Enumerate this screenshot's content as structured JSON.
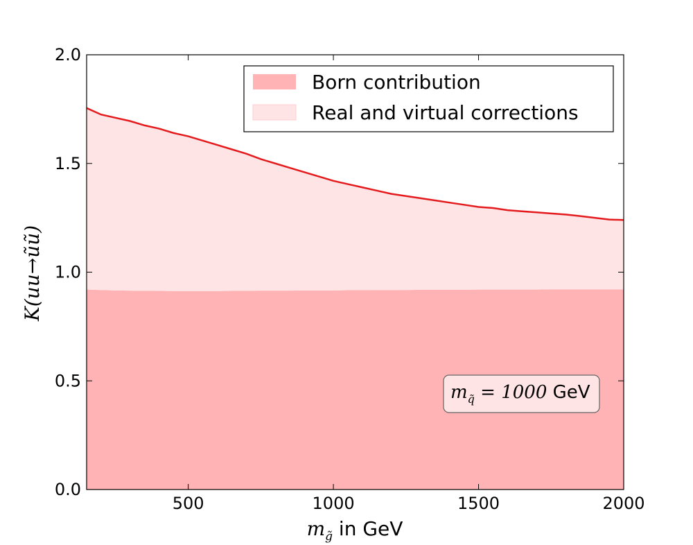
{
  "chart_data": {
    "type": "area",
    "x": [
      150,
      200,
      250,
      300,
      350,
      400,
      450,
      500,
      550,
      600,
      650,
      700,
      750,
      800,
      850,
      900,
      950,
      1000,
      1050,
      1100,
      1150,
      1200,
      1250,
      1300,
      1350,
      1400,
      1450,
      1500,
      1550,
      1600,
      1650,
      1700,
      1750,
      1800,
      1850,
      1900,
      1950,
      2000
    ],
    "series": [
      {
        "name": "Born contribution",
        "color": "#ffb3b5",
        "values": [
          0.92,
          0.918,
          0.916,
          0.915,
          0.914,
          0.914,
          0.913,
          0.913,
          0.913,
          0.913,
          0.914,
          0.914,
          0.915,
          0.915,
          0.915,
          0.916,
          0.916,
          0.916,
          0.917,
          0.917,
          0.918,
          0.918,
          0.918,
          0.919,
          0.919,
          0.919,
          0.919,
          0.92,
          0.92,
          0.92,
          0.92,
          0.92,
          0.921,
          0.921,
          0.921,
          0.921,
          0.921,
          0.921
        ]
      },
      {
        "name": "Real and virtual corrections",
        "color": "#ffe4e5",
        "line_color": "#e41a1c",
        "values": [
          1.755,
          1.725,
          1.71,
          1.695,
          1.675,
          1.66,
          1.64,
          1.625,
          1.605,
          1.585,
          1.565,
          1.545,
          1.52,
          1.5,
          1.48,
          1.46,
          1.44,
          1.42,
          1.405,
          1.39,
          1.375,
          1.36,
          1.35,
          1.34,
          1.33,
          1.32,
          1.31,
          1.3,
          1.295,
          1.285,
          1.28,
          1.275,
          1.27,
          1.265,
          1.258,
          1.25,
          1.242,
          1.24
        ]
      }
    ],
    "xlim": [
      150,
      2000
    ],
    "ylim": [
      0.0,
      2.0
    ],
    "xticks": [
      500,
      1000,
      1500,
      2000
    ],
    "yticks": [
      0.0,
      0.5,
      1.0,
      1.5,
      2.0
    ],
    "xtick_labels": [
      "500",
      "1000",
      "1500",
      "2000"
    ],
    "ytick_labels": [
      "0.0",
      "0.5",
      "1.0",
      "1.5",
      "2.0"
    ],
    "xlabel": {
      "math": "m",
      "sub": "g̃",
      "text": " in GeV"
    },
    "ylabel": "K(uu→ũũ)",
    "legend_position": "top-right",
    "grid": false,
    "annotation": {
      "math": "m",
      "sub": "q̃",
      "eq": " = 1000",
      "unit": " GeV"
    }
  }
}
